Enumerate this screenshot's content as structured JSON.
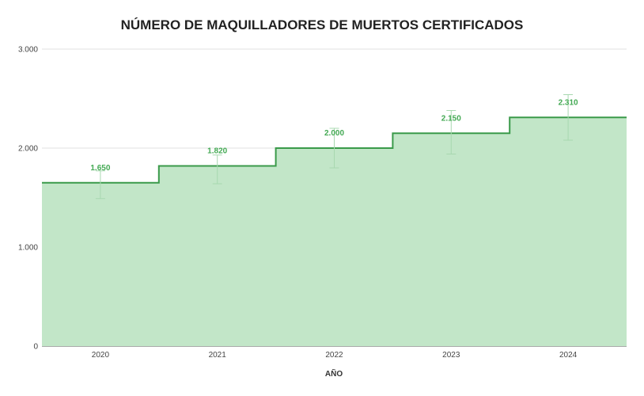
{
  "chart_data": {
    "type": "area",
    "subtype": "stepped-area",
    "title": "NÚMERO DE MAQUILLADORES DE MUERTOS CERTIFICADOS",
    "xlabel": "AÑO",
    "ylabel": "",
    "categories": [
      "2020",
      "2021",
      "2022",
      "2023",
      "2024"
    ],
    "series": [
      {
        "values": [
          1650,
          1820,
          2000,
          2150,
          2310
        ],
        "data_labels": [
          "1.650",
          "1.820",
          "2.000",
          "2.150",
          "2.310"
        ],
        "error_low": [
          1490,
          1640,
          1800,
          1940,
          2080
        ],
        "error_high": [
          1770,
          1930,
          2200,
          2380,
          2540
        ],
        "color": "#3a9a4a",
        "fill_color": "#c2e6c8",
        "label_color": "#43a953"
      }
    ],
    "ylim": [
      0,
      3000
    ],
    "yticks": [
      0,
      1000,
      2000,
      3000
    ],
    "ytick_labels": [
      "0",
      "1.000",
      "2.000",
      "3.000"
    ],
    "grid": true,
    "legend": "none",
    "gridline_color": "#d9d9d9",
    "error_bar_color": "#a8d8b0"
  }
}
